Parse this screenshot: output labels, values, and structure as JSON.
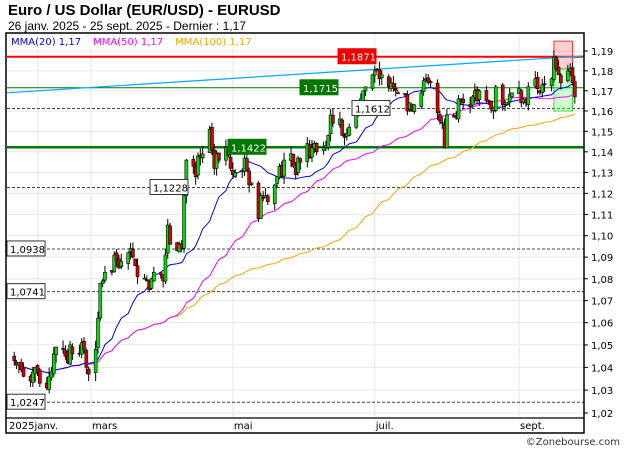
{
  "title": "Euro / US Dollar (EUR/USD) - EURUSD",
  "subtitle": "26 janv. 2025 - 25 sept. 2025 - Dernier : 1,17",
  "copyright": "©Zonebourse.com",
  "colors": {
    "up": "#00dd00",
    "down": "#dd0000",
    "ma20": "#0000ee",
    "ma50": "#ff00ff",
    "ma100": "#ffa500",
    "trend": "#00aaff",
    "resistance": "#ff0000",
    "support": "#007700"
  },
  "chart_data": {
    "type": "candlestick",
    "y_scale": "log",
    "ylim": [
      1.012,
      1.198
    ],
    "y_ticks": [
      "1,19",
      "1,18",
      "1,17",
      "1,16",
      "1,15",
      "1,14",
      "1,13",
      "1,12",
      "1,11",
      "1,10",
      "1,09",
      "1,08",
      "1,07",
      "1,06",
      "1,05",
      "1,04",
      "1,03",
      "1,02"
    ],
    "y_tick_values": [
      1.19,
      1.18,
      1.17,
      1.16,
      1.15,
      1.14,
      1.13,
      1.12,
      1.11,
      1.1,
      1.09,
      1.08,
      1.07,
      1.06,
      1.05,
      1.04,
      1.03,
      1.02
    ],
    "x_start": "2025-01-27",
    "x_end": "2025-09-25",
    "x_ticks": [
      {
        "label": "2025janv.",
        "date": "2025-01-27"
      },
      {
        "label": "mars",
        "date": "2025-03-01"
      },
      {
        "label": "mai",
        "date": "2025-05-01"
      },
      {
        "label": "juil.",
        "date": "2025-07-01"
      },
      {
        "label": "sept.",
        "date": "2025-09-01"
      }
    ],
    "grid": true,
    "legend": [
      {
        "name": "MMA(20)",
        "value": "1,17",
        "color": "#0000ee"
      },
      {
        "name": "MMA(50)",
        "value": "1,17",
        "color": "#ff00ff"
      },
      {
        "name": "MMA(100)",
        "value": "1,17",
        "color": "#ffa500"
      }
    ],
    "closes": [
      1.043,
      1.041,
      1.042,
      1.039,
      1.036,
      1.034,
      1.038,
      1.04,
      1.038,
      1.033,
      1.031,
      1.036,
      1.038,
      1.046,
      1.049,
      1.048,
      1.045,
      1.042,
      1.05,
      1.046,
      1.046,
      1.051,
      1.048,
      1.04,
      1.037,
      1.048,
      1.062,
      1.078,
      1.079,
      1.083,
      1.083,
      1.091,
      1.089,
      1.085,
      1.088,
      1.092,
      1.094,
      1.09,
      1.086,
      1.081,
      1.08,
      1.079,
      1.075,
      1.08,
      1.083,
      1.082,
      1.079,
      1.091,
      1.105,
      1.096,
      1.093,
      1.096,
      1.094,
      1.119,
      1.136,
      1.133,
      1.128,
      1.138,
      1.137,
      1.139,
      1.151,
      1.141,
      1.132,
      1.139,
      1.136,
      1.142,
      1.138,
      1.132,
      1.129,
      1.13,
      1.131,
      1.137,
      1.131,
      1.124,
      1.125,
      1.108,
      1.119,
      1.118,
      1.119,
      1.116,
      1.124,
      1.128,
      1.133,
      1.128,
      1.136,
      1.139,
      1.133,
      1.129,
      1.137,
      1.135,
      1.144,
      1.137,
      1.142,
      1.144,
      1.14,
      1.142,
      1.143,
      1.148,
      1.158,
      1.154,
      1.156,
      1.148,
      1.147,
      1.149,
      1.152,
      1.158,
      1.161,
      1.166,
      1.17,
      1.172,
      1.178,
      1.18,
      1.18,
      1.176,
      1.178,
      1.172,
      1.174,
      1.172,
      1.17,
      1.169,
      1.168,
      1.16,
      1.164,
      1.16,
      1.163,
      1.169,
      1.175,
      1.176,
      1.174,
      1.174,
      1.159,
      1.155,
      1.154,
      1.142,
      1.158,
      1.157,
      1.157,
      1.166,
      1.166,
      1.164,
      1.162,
      1.167,
      1.17,
      1.165,
      1.17,
      1.165,
      1.165,
      1.161,
      1.16,
      1.172,
      1.163,
      1.164,
      1.164,
      1.168,
      1.169,
      1.171,
      1.164,
      1.166,
      1.164,
      1.172,
      1.176,
      1.171,
      1.169,
      1.173,
      1.173,
      1.176,
      1.187,
      1.181,
      1.178,
      1.174,
      1.18,
      1.181,
      1.174,
      1.167
    ],
    "levels": [
      {
        "label": "1,1871",
        "value": 1.1871,
        "style": "resistance"
      },
      {
        "label": "1,1715",
        "value": 1.1715,
        "style": "support-thin"
      },
      {
        "label": "1,1612",
        "value": 1.1612,
        "style": "dashed"
      },
      {
        "label": "1,1422",
        "value": 1.1422,
        "style": "support"
      },
      {
        "label": "1,1228",
        "value": 1.1228,
        "style": "dashed"
      },
      {
        "label": "1,0938",
        "value": 1.0938,
        "style": "dashed"
      },
      {
        "label": "1,0741",
        "value": 1.0741,
        "style": "dashed"
      },
      {
        "label": "1,0247",
        "value": 1.0247,
        "style": "dashed"
      }
    ],
    "trendline": {
      "from": {
        "date": "2025-01-27",
        "value": 1.169
      },
      "to": {
        "date": "2025-09-25",
        "value": 1.1875
      }
    },
    "zones": [
      {
        "type": "resistance",
        "from_date": "2025-09-16",
        "to_date": "2025-09-24",
        "low": 1.181,
        "high": 1.195
      },
      {
        "type": "support",
        "from_date": "2025-09-16",
        "to_date": "2025-09-24",
        "low": 1.16,
        "high": 1.181
      }
    ]
  }
}
